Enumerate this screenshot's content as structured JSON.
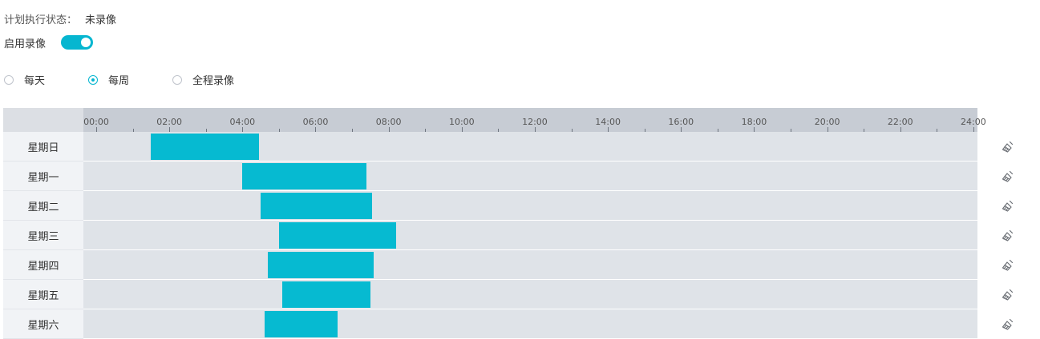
{
  "status": {
    "label": "计划执行状态：",
    "value": "未录像"
  },
  "enable": {
    "label": "启用录像",
    "on": true
  },
  "modes": [
    {
      "label": "每天",
      "checked": false
    },
    {
      "label": "每周",
      "checked": true
    },
    {
      "label": "全程录像",
      "checked": false
    }
  ],
  "timeline": {
    "labels": [
      "00:00",
      "02:00",
      "04:00",
      "06:00",
      "08:00",
      "10:00",
      "12:00",
      "14:00",
      "16:00",
      "18:00",
      "20:00",
      "22:00",
      "24:00"
    ]
  },
  "days": [
    {
      "label": "星期日",
      "blocks": [
        [
          1.5,
          4.45
        ]
      ]
    },
    {
      "label": "星期一",
      "blocks": [
        [
          4.0,
          7.4
        ]
      ]
    },
    {
      "label": "星期二",
      "blocks": [
        [
          4.5,
          7.55
        ]
      ]
    },
    {
      "label": "星期三",
      "blocks": [
        [
          5.0,
          8.2
        ]
      ]
    },
    {
      "label": "星期四",
      "blocks": [
        [
          4.7,
          7.6
        ]
      ]
    },
    {
      "label": "星期五",
      "blocks": [
        [
          5.1,
          7.5
        ]
      ]
    },
    {
      "label": "星期六",
      "blocks": [
        [
          4.6,
          6.6
        ]
      ]
    }
  ],
  "colors": {
    "accent": "#06b6d0",
    "block": "#06bad1"
  },
  "icons": {
    "clear": "broom-icon"
  }
}
